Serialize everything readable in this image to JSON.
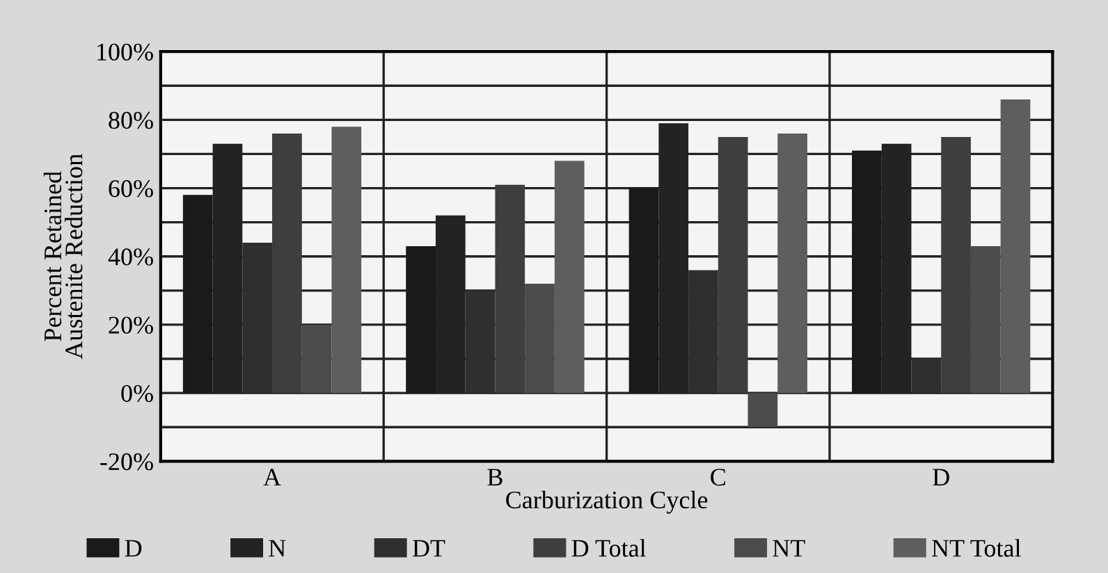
{
  "chart_data": {
    "type": "bar",
    "xlabel": "Carburization Cycle",
    "ylabel": "Percent Retained\nAustenite Reduction",
    "categories": [
      "A",
      "B",
      "C",
      "D"
    ],
    "series": [
      {
        "name": "D",
        "color": "#1a1a1a",
        "values": [
          58,
          43,
          60,
          71
        ]
      },
      {
        "name": "N",
        "color": "#232323",
        "values": [
          73,
          52,
          79,
          73
        ]
      },
      {
        "name": "DT",
        "color": "#2f2f2f",
        "values": [
          44,
          30,
          36,
          10
        ]
      },
      {
        "name": "D Total",
        "color": "#3e3e3e",
        "values": [
          76,
          61,
          75,
          75
        ]
      },
      {
        "name": "NT",
        "color": "#4b4b4b",
        "values": [
          20,
          32,
          -10,
          43
        ]
      },
      {
        "name": "NT Total",
        "color": "#5e5e5e",
        "values": [
          78,
          68,
          76,
          86
        ]
      }
    ],
    "ylim": [
      -20,
      100
    ],
    "yticks": [
      {
        "value": -20,
        "label": "-20%"
      },
      {
        "value": -10,
        "label": null
      },
      {
        "value": 0,
        "label": "0%"
      },
      {
        "value": 10,
        "label": null
      },
      {
        "value": 20,
        "label": "20%"
      },
      {
        "value": 30,
        "label": null
      },
      {
        "value": 40,
        "label": "40%"
      },
      {
        "value": 50,
        "label": null
      },
      {
        "value": 60,
        "label": "60%"
      },
      {
        "value": 70,
        "label": null
      },
      {
        "value": 80,
        "label": "80%"
      },
      {
        "value": 90,
        "label": null
      },
      {
        "value": 100,
        "label": "100%"
      }
    ],
    "grid": true,
    "legend": "bottom"
  }
}
